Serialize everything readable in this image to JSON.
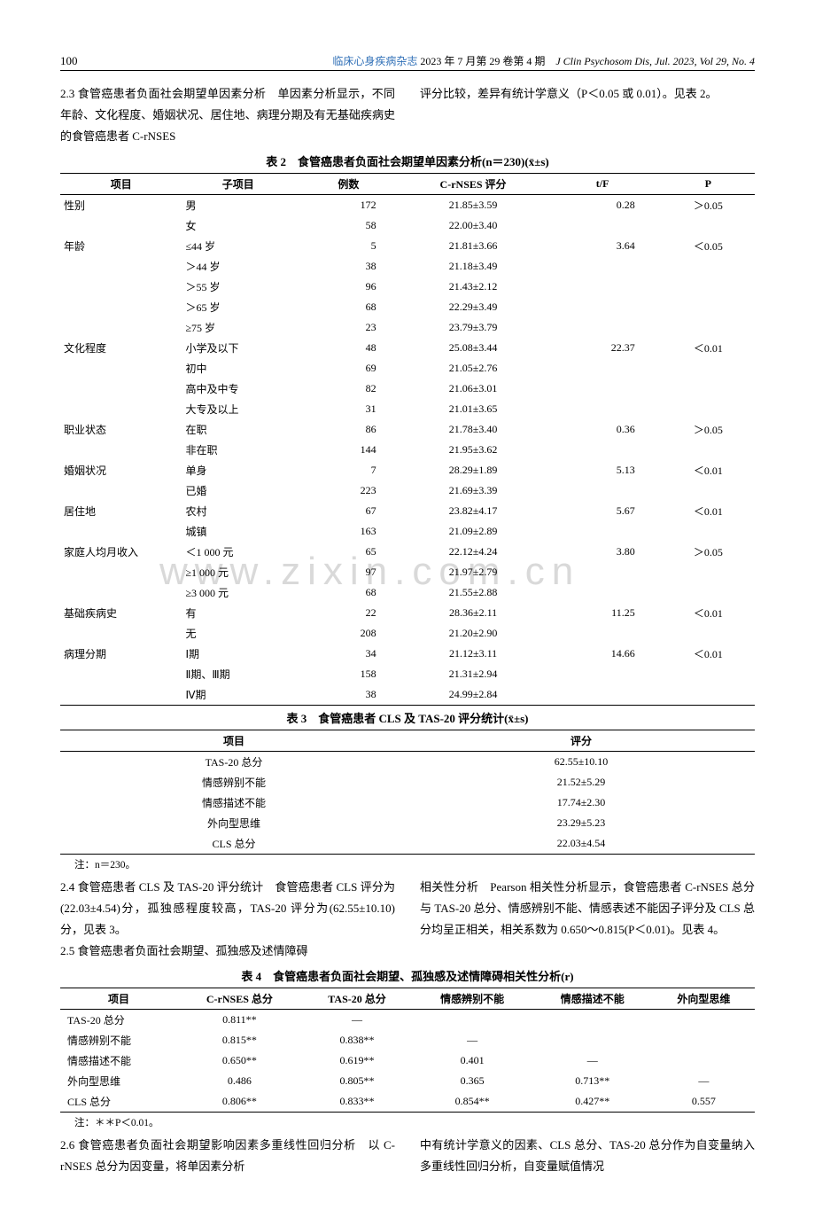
{
  "header": {
    "page_num": "100",
    "journal_cn": "临床心身疾病杂志",
    "issue_cn": "2023 年 7 月第 29 卷第 4 期",
    "journal_en": "J Clin Psychosom Dis, Jul. 2023, Vol 29, No. 4"
  },
  "watermark": "www.zixin.com.cn",
  "para_top_left": "2.3 食管癌患者负面社会期望单因素分析　单因素分析显示，不同年龄、文化程度、婚姻状况、居住地、病理分期及有无基础疾病史的食管癌患者 C-rNSES",
  "para_top_right": "评分比较，差异有统计学意义（P＜0.05 或 0.01）。见表 2。",
  "table2": {
    "caption": "表 2　食管癌患者负面社会期望单因素分析(n＝230)(x̄±s)",
    "headers": [
      "项目",
      "子项目",
      "例数",
      "C-rNSES 评分",
      "t/F",
      "P"
    ],
    "groups": [
      {
        "name": "性别",
        "tf": "0.28",
        "p": "＞0.05",
        "rows": [
          {
            "sub": "男",
            "n": "172",
            "score": "21.85±3.59"
          },
          {
            "sub": "女",
            "n": "58",
            "score": "22.00±3.40"
          }
        ]
      },
      {
        "name": "年龄",
        "tf": "3.64",
        "p": "＜0.05",
        "rows": [
          {
            "sub": "≤44 岁",
            "n": "5",
            "score": "21.81±3.66"
          },
          {
            "sub": "＞44 岁",
            "n": "38",
            "score": "21.18±3.49"
          },
          {
            "sub": "＞55 岁",
            "n": "96",
            "score": "21.43±2.12"
          },
          {
            "sub": "＞65 岁",
            "n": "68",
            "score": "22.29±3.49"
          },
          {
            "sub": "≥75 岁",
            "n": "23",
            "score": "23.79±3.79"
          }
        ]
      },
      {
        "name": "文化程度",
        "tf": "22.37",
        "p": "＜0.01",
        "rows": [
          {
            "sub": "小学及以下",
            "n": "48",
            "score": "25.08±3.44"
          },
          {
            "sub": "初中",
            "n": "69",
            "score": "21.05±2.76"
          },
          {
            "sub": "高中及中专",
            "n": "82",
            "score": "21.06±3.01"
          },
          {
            "sub": "大专及以上",
            "n": "31",
            "score": "21.01±3.65"
          }
        ]
      },
      {
        "name": "职业状态",
        "tf": "0.36",
        "p": "＞0.05",
        "rows": [
          {
            "sub": "在职",
            "n": "86",
            "score": "21.78±3.40"
          },
          {
            "sub": "非在职",
            "n": "144",
            "score": "21.95±3.62"
          }
        ]
      },
      {
        "name": "婚姻状况",
        "tf": "5.13",
        "p": "＜0.01",
        "rows": [
          {
            "sub": "单身",
            "n": "7",
            "score": "28.29±1.89"
          },
          {
            "sub": "已婚",
            "n": "223",
            "score": "21.69±3.39"
          }
        ]
      },
      {
        "name": "居住地",
        "tf": "5.67",
        "p": "＜0.01",
        "rows": [
          {
            "sub": "农村",
            "n": "67",
            "score": "23.82±4.17"
          },
          {
            "sub": "城镇",
            "n": "163",
            "score": "21.09±2.89"
          }
        ]
      },
      {
        "name": "家庭人均月收入",
        "tf": "3.80",
        "p": "＞0.05",
        "rows": [
          {
            "sub": "＜1 000 元",
            "n": "65",
            "score": "22.12±4.24"
          },
          {
            "sub": "≥1 000 元",
            "n": "97",
            "score": "21.97±2.79"
          },
          {
            "sub": "≥3 000 元",
            "n": "68",
            "score": "21.55±2.88"
          }
        ]
      },
      {
        "name": "基础疾病史",
        "tf": "11.25",
        "p": "＜0.01",
        "rows": [
          {
            "sub": "有",
            "n": "22",
            "score": "28.36±2.11"
          },
          {
            "sub": "无",
            "n": "208",
            "score": "21.20±2.90"
          }
        ]
      },
      {
        "name": "病理分期",
        "tf": "14.66",
        "p": "＜0.01",
        "rows": [
          {
            "sub": "Ⅰ期",
            "n": "34",
            "score": "21.12±3.11"
          },
          {
            "sub": "Ⅱ期、Ⅲ期",
            "n": "158",
            "score": "21.31±2.94"
          },
          {
            "sub": "Ⅳ期",
            "n": "38",
            "score": "24.99±2.84"
          }
        ]
      }
    ]
  },
  "table3": {
    "caption": "表 3　食管癌患者 CLS 及 TAS-20 评分统计(x̄±s)",
    "headers": [
      "项目",
      "评分"
    ],
    "rows": [
      {
        "item": "TAS-20 总分",
        "score": "62.55±10.10"
      },
      {
        "item": "情感辨别不能",
        "score": "21.52±5.29"
      },
      {
        "item": "情感描述不能",
        "score": "17.74±2.30"
      },
      {
        "item": "外向型思维",
        "score": "23.29±5.23"
      },
      {
        "item": "CLS 总分",
        "score": "22.03±4.54"
      }
    ],
    "note": "注：n＝230。"
  },
  "para_mid_left": "2.4 食管癌患者 CLS 及 TAS-20 评分统计　食管癌患者 CLS 评分为(22.03±4.54)分，孤独感程度较高，TAS-20 评分为(62.55±10.10)分，见表 3。",
  "para_mid_left2": "2.5 食管癌患者负面社会期望、孤独感及述情障碍",
  "para_mid_right": "相关性分析　Pearson 相关性分析显示，食管癌患者 C-rNSES 总分与 TAS-20 总分、情感辨别不能、情感表述不能因子评分及 CLS 总分均呈正相关，相关系数为 0.650～0.815(P＜0.01)。见表 4。",
  "table4": {
    "caption": "表 4　食管癌患者负面社会期望、孤独感及述情障碍相关性分析(r)",
    "headers": [
      "项目",
      "C-rNSES 总分",
      "TAS-20 总分",
      "情感辨别不能",
      "情感描述不能",
      "外向型思维"
    ],
    "rows": [
      {
        "c0": "TAS-20 总分",
        "c1": "0.811**",
        "c2": "—",
        "c3": "",
        "c4": "",
        "c5": ""
      },
      {
        "c0": "情感辨别不能",
        "c1": "0.815**",
        "c2": "0.838**",
        "c3": "—",
        "c4": "",
        "c5": ""
      },
      {
        "c0": "情感描述不能",
        "c1": "0.650**",
        "c2": "0.619**",
        "c3": "0.401",
        "c4": "—",
        "c5": ""
      },
      {
        "c0": "外向型思维",
        "c1": "0.486",
        "c2": "0.805**",
        "c3": "0.365",
        "c4": "0.713**",
        "c5": "—"
      },
      {
        "c0": "CLS 总分",
        "c1": "0.806**",
        "c2": "0.833**",
        "c3": "0.854**",
        "c4": "0.427**",
        "c5": "0.557"
      }
    ],
    "note": "注：＊＊P＜0.01。"
  },
  "para_bot_left": "2.6 食管癌患者负面社会期望影响因素多重线性回归分析　以 C-rNSES 总分为因变量，将单因素分析",
  "para_bot_right": "中有统计学意义的因素、CLS 总分、TAS-20 总分作为自变量纳入多重线性回归分析，自变量赋值情况"
}
